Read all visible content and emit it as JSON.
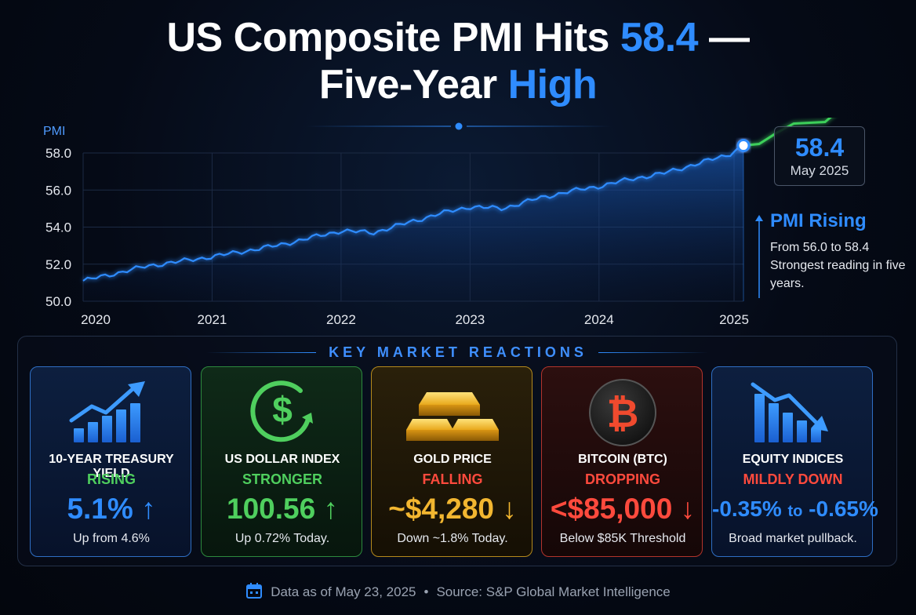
{
  "title": {
    "part1": "US Composite PMI Hits ",
    "highlight1": "58.4",
    "part2": " —",
    "part3": "Five-Year ",
    "highlight2": "High"
  },
  "chart_data": {
    "type": "line",
    "ylabel": "PMI",
    "ylim": [
      50,
      58
    ],
    "yticks": [
      "50.0",
      "52.0",
      "54.0",
      "56.0",
      "58.0"
    ],
    "xticks": [
      "2020",
      "2021",
      "2022",
      "2023",
      "2024",
      "2025"
    ],
    "x": [
      2020.0,
      2020.5,
      2021.0,
      2021.5,
      2022.0,
      2022.25,
      2022.5,
      2022.75,
      2023.0,
      2023.25,
      2023.5,
      2023.75,
      2024.0,
      2024.25,
      2024.5,
      2024.75,
      2025.0,
      2025.12
    ],
    "values": [
      51.1,
      51.9,
      52.4,
      53.0,
      53.8,
      53.7,
      54.2,
      54.7,
      55.1,
      55.0,
      55.5,
      55.9,
      56.2,
      56.6,
      56.9,
      57.4,
      57.9,
      58.4
    ],
    "last_point": {
      "value": "58.4",
      "date": "May 2025"
    },
    "colors": {
      "line": "#2f8cff",
      "forecast": "#3ccf5a"
    }
  },
  "annotation": {
    "heading": "PMI Rising",
    "line1": "From 56.0 to 58.4",
    "line2": "Strongest reading in five years."
  },
  "reactions": {
    "title": "KEY MARKET REACTIONS",
    "cards": [
      {
        "icon": "rising-bar-chart-icon",
        "label": "10-YEAR TREASURY YIELD",
        "status": "RISING",
        "value": "5.1%",
        "arrow": "↑",
        "note": "Up from 4.6%",
        "color": "#2f8cff"
      },
      {
        "icon": "dollar-cycle-icon",
        "label": "US DOLLAR INDEX",
        "status": "STRONGER",
        "value": "100.56",
        "arrow": "↑",
        "note": "Up 0.72% Today.",
        "color": "#4fcf5e"
      },
      {
        "icon": "gold-bars-icon",
        "label": "GOLD PRICE",
        "status": "FALLING",
        "value": "~$4,280",
        "arrow": "↓",
        "note": "Down ~1.8% Today.",
        "color": "#f2b630"
      },
      {
        "icon": "bitcoin-icon",
        "label": "BITCOIN (BTC)",
        "status": "DROPPING",
        "value": "<$85,000",
        "arrow": "↓",
        "note": "Below $85K Threshold",
        "color": "#ff4a3d"
      },
      {
        "icon": "falling-bar-chart-icon",
        "label": "EQUITY INDICES",
        "status": "MILDLY DOWN",
        "value_a": "-0.35%",
        "value_to": "to",
        "value_b": "-0.65%",
        "note": "Broad market pullback.",
        "color": "#2f8cff"
      }
    ]
  },
  "footer": {
    "date": "Data as of May 23, 2025",
    "sep": "•",
    "source": "Source: S&P Global Market Intelligence"
  }
}
